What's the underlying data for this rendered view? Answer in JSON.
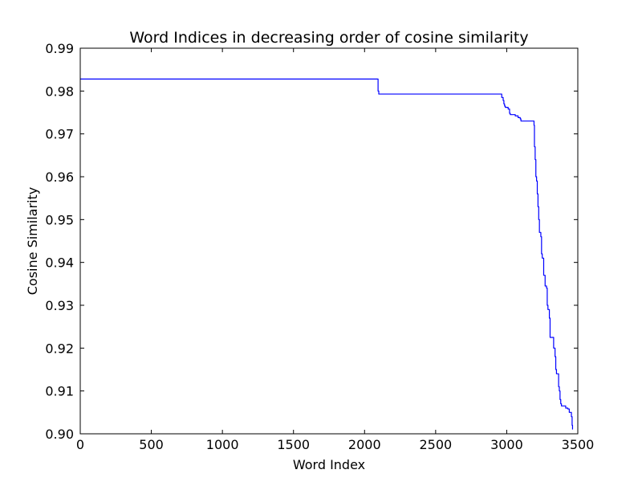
{
  "chart_data": {
    "type": "line",
    "title": "Word Indices in decreasing order of cosine similarity",
    "xlabel": "Word Index",
    "ylabel": "Cosine Similarity",
    "xlim": [
      0,
      3500
    ],
    "ylim": [
      0.9,
      0.99
    ],
    "xticks": [
      0,
      500,
      1000,
      1500,
      2000,
      2500,
      3000,
      3500
    ],
    "xtick_labels": [
      "0",
      "500",
      "1000",
      "1500",
      "2000",
      "2500",
      "3000",
      "3500"
    ],
    "yticks": [
      0.9,
      0.91,
      0.92,
      0.93,
      0.94,
      0.95,
      0.96,
      0.97,
      0.98,
      0.99
    ],
    "ytick_labels": [
      "0.90",
      "0.91",
      "0.92",
      "0.93",
      "0.94",
      "0.95",
      "0.96",
      "0.97",
      "0.98",
      "0.99"
    ],
    "grid": false,
    "series": [
      {
        "color": "#0000ff",
        "x": [
          0,
          2095,
          2095,
          2100,
          2960,
          2965,
          2975,
          2980,
          2985,
          2990,
          3010,
          3020,
          3025,
          3040,
          3060,
          3080,
          3095,
          3100,
          3190,
          3192,
          3195,
          3200,
          3205,
          3210,
          3215,
          3220,
          3225,
          3230,
          3240,
          3245,
          3250,
          3260,
          3265,
          3270,
          3280,
          3285,
          3290,
          3300,
          3305,
          3310,
          3325,
          3330,
          3340,
          3345,
          3350,
          3360,
          3365,
          3370,
          3375,
          3380,
          3385,
          3395,
          3405,
          3415,
          3430,
          3440,
          3455,
          3460,
          3463
        ],
        "y": [
          0.9828,
          0.9828,
          0.98,
          0.9793,
          0.9793,
          0.9785,
          0.9778,
          0.977,
          0.9765,
          0.9762,
          0.9758,
          0.9748,
          0.9745,
          0.9745,
          0.9742,
          0.9738,
          0.9735,
          0.973,
          0.973,
          0.972,
          0.967,
          0.964,
          0.96,
          0.959,
          0.956,
          0.953,
          0.95,
          0.947,
          0.946,
          0.942,
          0.941,
          0.937,
          0.937,
          0.9345,
          0.934,
          0.93,
          0.929,
          0.927,
          0.9225,
          0.9225,
          0.9225,
          0.92,
          0.918,
          0.915,
          0.914,
          0.914,
          0.911,
          0.91,
          0.908,
          0.907,
          0.9065,
          0.9065,
          0.9065,
          0.906,
          0.9058,
          0.905,
          0.904,
          0.902,
          0.901
        ]
      }
    ]
  }
}
